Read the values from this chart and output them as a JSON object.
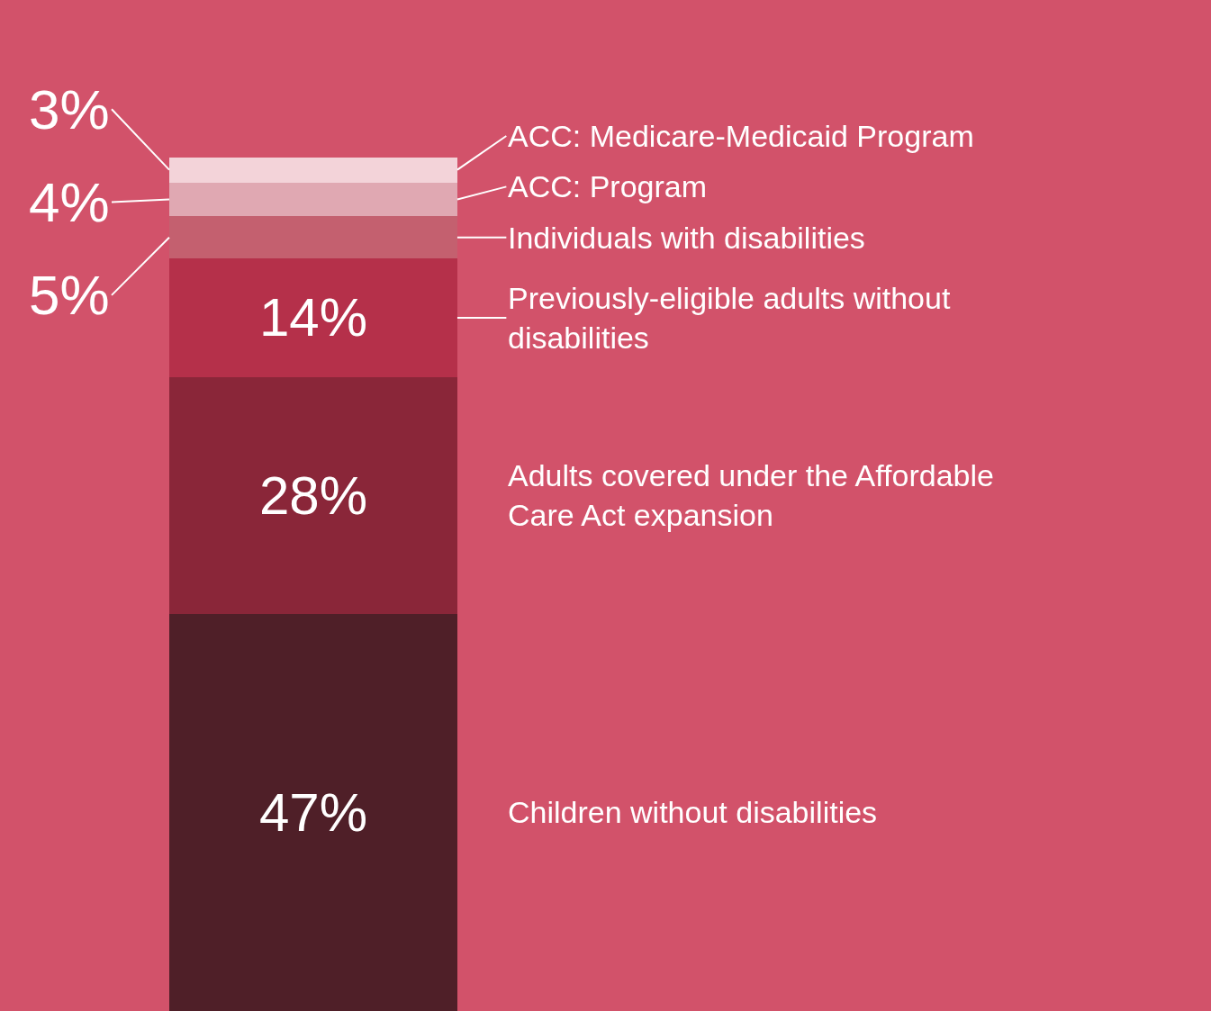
{
  "chart_data": {
    "type": "bar",
    "stacked": true,
    "categories": [
      null
    ],
    "legend": false,
    "series": [
      {
        "name": "Children without disabilities",
        "color": "#4f1f28",
        "values": [
          47
        ],
        "value_labels": [
          "47%"
        ]
      },
      {
        "name": "Adults covered under the Affordable Care Act expansion",
        "color": "#8a2639",
        "values": [
          28
        ],
        "value_labels": [
          "28%"
        ]
      },
      {
        "name": "Previously-eligible adults without disabilities",
        "color": "#b5304a",
        "values": [
          14
        ],
        "value_labels": [
          "14%"
        ]
      },
      {
        "name": "Individuals with disabilities",
        "color": "#c4606f",
        "values": [
          5
        ],
        "value_labels": [
          "5%"
        ]
      },
      {
        "name": "ACC: Program",
        "color": "#e0a8b2",
        "values": [
          4
        ],
        "value_labels": [
          "4%"
        ]
      },
      {
        "name": "ACC: Medicare-Medicaid Program",
        "color": "#f3d3d9",
        "values": [
          3
        ],
        "value_labels": [
          "3%"
        ]
      }
    ]
  }
}
